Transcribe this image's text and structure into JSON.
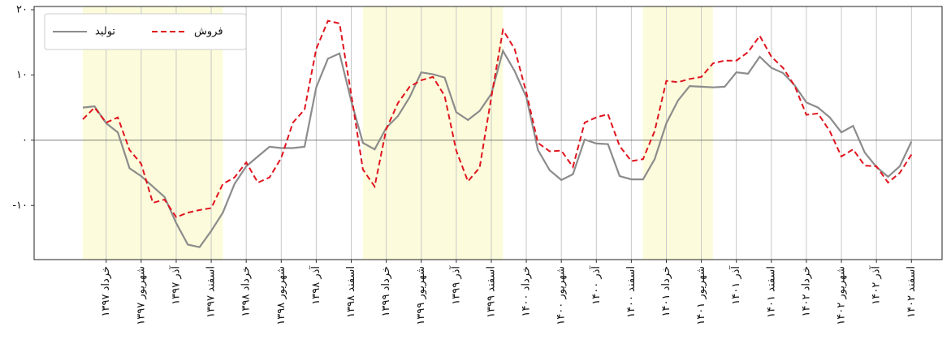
{
  "chart_data": {
    "type": "line",
    "categories": [
      null,
      null,
      "خرداد ۱۳۹۷",
      null,
      null,
      "شهریور ۱۳۹۷",
      null,
      null,
      "آذر ۱۳۹۷",
      null,
      null,
      "اسفند ۱۳۹۷",
      null,
      null,
      "خرداد ۱۳۹۸",
      null,
      null,
      "شهریور ۱۳۹۸",
      null,
      null,
      "آذر ۱۳۹۸",
      null,
      null,
      "اسفند ۱۳۹۸",
      null,
      null,
      "خرداد ۱۳۹۹",
      null,
      null,
      "شهریور ۱۳۹۹",
      null,
      null,
      "آذر ۱۳۹۹",
      null,
      null,
      "اسفند ۱۳۹۹",
      null,
      null,
      "خرداد ۱۴۰۰",
      null,
      null,
      "شهریور ۱۴۰۰",
      null,
      null,
      "آذر ۱۴۰۰",
      null,
      null,
      "اسفند ۱۴۰۰",
      null,
      null,
      "خرداد ۱۴۰۱",
      null,
      null,
      "شهریور ۱۴۰۱",
      null,
      null,
      "آذر ۱۴۰۱",
      null,
      null,
      "اسفند ۱۴۰۱",
      null,
      null,
      "خرداد ۱۴۰۲",
      null,
      null,
      "شهریور ۱۴۰۲",
      null,
      null,
      "آذر ۱۴۰۲",
      null,
      null,
      "اسفند ۱۴۰۲"
    ],
    "series": [
      {
        "name": "تولید",
        "color": "#8c8c8c",
        "dash": false,
        "values": [
          5.0,
          5.2,
          2.6,
          1.2,
          -4.3,
          -5.5,
          -7.1,
          -8.7,
          -12.7,
          -16.0,
          -16.4,
          -13.9,
          -11.1,
          -6.7,
          -4.0,
          -2.5,
          -1.0,
          -1.2,
          -1.2,
          -1.0,
          8.1,
          12.5,
          13.3,
          6.0,
          -0.4,
          -1.4,
          1.9,
          3.7,
          6.6,
          10.4,
          10.1,
          9.6,
          4.3,
          3.1,
          4.5,
          7.1,
          13.7,
          10.6,
          6.6,
          -1.5,
          -4.6,
          -6.1,
          -5.2,
          0.1,
          -0.5,
          -0.6,
          -5.5,
          -6.0,
          -6.0,
          -2.9,
          2.6,
          6.1,
          8.3,
          8.2,
          8.1,
          8.2,
          10.4,
          10.2,
          12.8,
          11.1,
          10.3,
          8.4,
          5.8,
          5.0,
          3.5,
          1.2,
          2.2,
          -1.9,
          -4.1,
          -5.6,
          -4.0,
          -0.2
        ]
      },
      {
        "name": "فروش",
        "color": "#e0141e",
        "dash": true,
        "values": [
          3.2,
          5.0,
          2.7,
          3.5,
          -1.5,
          -3.6,
          -9.6,
          -9.1,
          -11.8,
          -11.1,
          -10.7,
          -10.4,
          -6.7,
          -5.7,
          -3.4,
          -6.5,
          -5.7,
          -2.7,
          2.7,
          4.7,
          14.0,
          18.3,
          17.9,
          7.0,
          -4.5,
          -7.1,
          1.7,
          5.7,
          8.2,
          9.2,
          9.7,
          6.8,
          -1.6,
          -6.3,
          -4.2,
          6.6,
          16.9,
          14.0,
          7.3,
          -0.4,
          -1.7,
          -1.6,
          -4.1,
          2.7,
          3.5,
          4.0,
          -0.9,
          -3.2,
          -2.9,
          1.4,
          9.1,
          8.9,
          9.4,
          9.7,
          11.8,
          12.2,
          12.2,
          13.5,
          16.0,
          12.8,
          11.1,
          8.3,
          3.9,
          4.1,
          1.4,
          -2.5,
          -1.4,
          -3.9,
          -4.0,
          -6.5,
          -5.0,
          -2.2
        ]
      }
    ],
    "ylim": [
      -18.3,
      20.5
    ],
    "yticks": [
      {
        "value": -10,
        "label": "-۱۰"
      },
      {
        "value": 0,
        "label": "۰"
      },
      {
        "value": 10,
        "label": "۱۰"
      },
      {
        "value": 20,
        "label": "۲۰"
      }
    ],
    "zero_line": true,
    "grid": "x",
    "legend": "upper left",
    "shaded_spans": [
      [
        0,
        12
      ],
      [
        24,
        36
      ],
      [
        48,
        54
      ]
    ],
    "shade_color": "#fcfcdc"
  }
}
